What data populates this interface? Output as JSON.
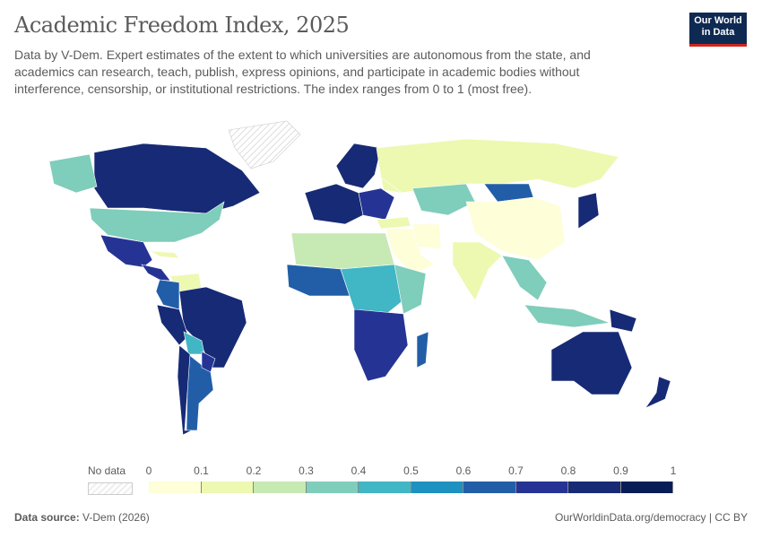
{
  "title": "Academic Freedom Index, 2025",
  "subtitle": "Data by V-Dem. Expert estimates of the extent to which universities are autonomous from the state, and academics can research, teach, publish, express opinions, and participate in academic bodies without interference, censorship, or institutional restrictions. The index ranges from 0 to 1 (most free).",
  "logo": {
    "line1": "Our World",
    "line2": "in Data"
  },
  "legend": {
    "no_data_label": "No data",
    "ticks": [
      "0",
      "0.1",
      "0.2",
      "0.3",
      "0.4",
      "0.5",
      "0.6",
      "0.7",
      "0.8",
      "0.9",
      "1"
    ],
    "colors": [
      "#fefed8",
      "#edf8b1",
      "#c7e9b4",
      "#7fcdbb",
      "#41b6c4",
      "#1d91c0",
      "#225ea8",
      "#253494",
      "#172a75",
      "#081d58"
    ]
  },
  "footer": {
    "source_label": "Data source:",
    "source": "V-Dem (2026)",
    "link": "OurWorldinData.org/democracy | CC BY"
  },
  "map_regions": [
    {
      "name": "Canada",
      "bin": 8
    },
    {
      "name": "United States",
      "bin": 3
    },
    {
      "name": "Mexico",
      "bin": 7
    },
    {
      "name": "Alaska",
      "bin": 3
    },
    {
      "name": "Greenland",
      "bin": -1
    },
    {
      "name": "Central America",
      "bin": 7
    },
    {
      "name": "Cuba",
      "bin": 1
    },
    {
      "name": "Venezuela",
      "bin": 1
    },
    {
      "name": "Colombia",
      "bin": 6
    },
    {
      "name": "Brazil",
      "bin": 8
    },
    {
      "name": "Peru",
      "bin": 8
    },
    {
      "name": "Bolivia",
      "bin": 4
    },
    {
      "name": "Argentina",
      "bin": 6
    },
    {
      "name": "Chile",
      "bin": 8
    },
    {
      "name": "Paraguay",
      "bin": 7
    },
    {
      "name": "Western Europe",
      "bin": 8
    },
    {
      "name": "Scandinavia",
      "bin": 8
    },
    {
      "name": "Eastern Europe",
      "bin": 7
    },
    {
      "name": "Belarus",
      "bin": 1
    },
    {
      "name": "Russia",
      "bin": 1
    },
    {
      "name": "Kazakhstan",
      "bin": 3
    },
    {
      "name": "Mongolia",
      "bin": 6
    },
    {
      "name": "China",
      "bin": 0
    },
    {
      "name": "India",
      "bin": 1
    },
    {
      "name": "Middle East",
      "bin": 0
    },
    {
      "name": "Turkey",
      "bin": 1
    },
    {
      "name": "Iran",
      "bin": 0
    },
    {
      "name": "North Africa",
      "bin": 2
    },
    {
      "name": "West Africa",
      "bin": 6
    },
    {
      "name": "Central Africa",
      "bin": 4
    },
    {
      "name": "East Africa",
      "bin": 3
    },
    {
      "name": "Southern Africa",
      "bin": 7
    },
    {
      "name": "Madagascar",
      "bin": 6
    },
    {
      "name": "Japan",
      "bin": 8
    },
    {
      "name": "Southeast Asia",
      "bin": 3
    },
    {
      "name": "Indonesia",
      "bin": 3
    },
    {
      "name": "Papua New Guinea",
      "bin": 8
    },
    {
      "name": "Australia",
      "bin": 8
    },
    {
      "name": "New Zealand",
      "bin": 8
    }
  ]
}
